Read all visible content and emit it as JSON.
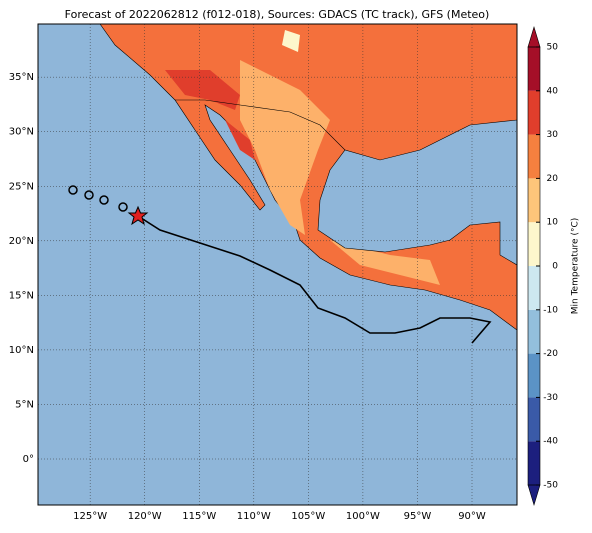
{
  "title": "Forecast of 2022062812 (f012-018), Sources: GDACS (TC track), GFS (Meteo)",
  "map": {
    "lat_ticks": [
      {
        "value": 35,
        "label": "35°N"
      },
      {
        "value": 30,
        "label": "30°N"
      },
      {
        "value": 25,
        "label": "25°N"
      },
      {
        "value": 20,
        "label": "20°N"
      },
      {
        "value": 15,
        "label": "15°N"
      },
      {
        "value": 10,
        "label": "10°N"
      },
      {
        "value": 5,
        "label": "5°N"
      },
      {
        "value": 0,
        "label": "0°"
      }
    ],
    "lon_ticks": [
      {
        "value": -125,
        "label": "125°W"
      },
      {
        "value": -120,
        "label": "120°W"
      },
      {
        "value": -115,
        "label": "115°W"
      },
      {
        "value": -110,
        "label": "110°W"
      },
      {
        "value": -105,
        "label": "105°W"
      },
      {
        "value": -100,
        "label": "100°W"
      },
      {
        "value": -95,
        "label": "95°W"
      },
      {
        "value": -90,
        "label": "90°W"
      }
    ]
  },
  "colorbar": {
    "label": "Min Temperature (°C)",
    "ticks": [
      50,
      40,
      30,
      20,
      10,
      0,
      -10,
      -20,
      -30,
      -40,
      -50
    ],
    "colors": [
      "#1c1f7e",
      "#3a5aa8",
      "#5b93c6",
      "#93bfdc",
      "#cde8f0",
      "#fdf7cc",
      "#fdc57a",
      "#f5803f",
      "#e03e2c",
      "#a50f28"
    ]
  }
}
